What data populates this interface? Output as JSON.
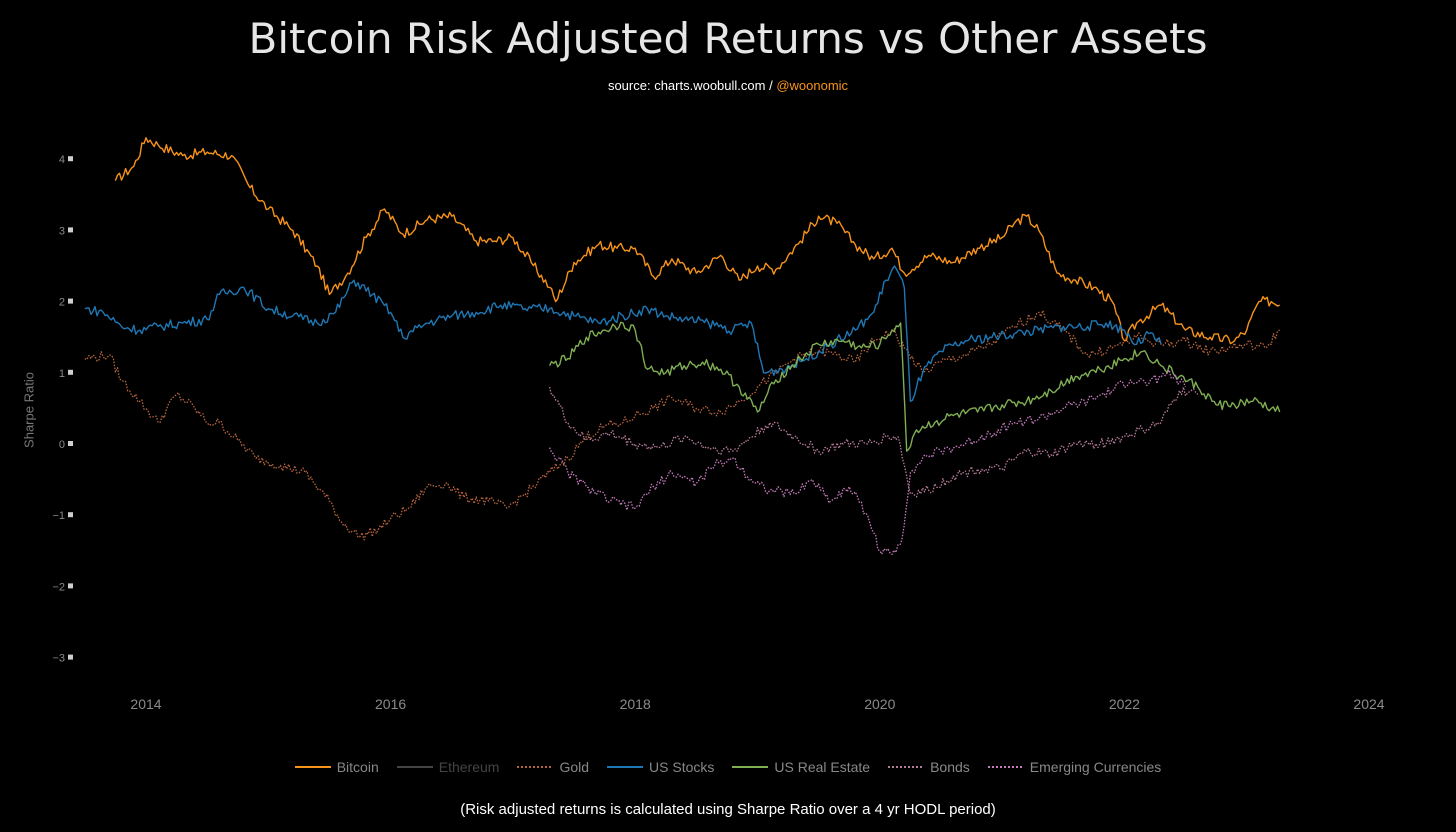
{
  "chart_data": {
    "type": "line",
    "title": "Bitcoin Risk Adjusted Returns vs Other Assets",
    "subtitle_source": "source: charts.woobull.com /",
    "subtitle_handle": "@woonomic",
    "ylabel": "Sharpe Ratio",
    "xlabel": "",
    "footnote": "(Risk adjusted returns is calculated using Sharpe Ratio over a 4 yr HODL period)",
    "ylim": [
      -3,
      4.5
    ],
    "xlim": [
      2013.5,
      2024.2
    ],
    "yticks": [
      4,
      3,
      2,
      1,
      0,
      -1,
      -2,
      -3
    ],
    "ytick_labels": [
      "4",
      "3",
      "2",
      "1",
      "0",
      "−1",
      "−2",
      "−3"
    ],
    "xticks": [
      2014,
      2016,
      2018,
      2020,
      2022,
      2024
    ],
    "xtick_labels": [
      "2014",
      "2016",
      "2018",
      "2020",
      "2022",
      "2024"
    ],
    "legend_position": "bottom",
    "series": [
      {
        "name": "Bitcoin",
        "color": "#f7931a",
        "dash": "solid",
        "muted": false,
        "x": [
          2013.75,
          2013.9,
          2014.0,
          2014.1,
          2014.3,
          2014.5,
          2014.7,
          2014.85,
          2015.0,
          2015.2,
          2015.4,
          2015.5,
          2015.65,
          2015.8,
          2015.95,
          2016.1,
          2016.3,
          2016.5,
          2016.7,
          2016.85,
          2017.0,
          2017.15,
          2017.3,
          2017.35,
          2017.5,
          2017.7,
          2017.85,
          2018.0,
          2018.15,
          2018.3,
          2018.5,
          2018.7,
          2018.85,
          2019.0,
          2019.15,
          2019.35,
          2019.5,
          2019.65,
          2019.8,
          2019.95,
          2020.1,
          2020.2,
          2020.4,
          2020.6,
          2020.8,
          2021.0,
          2021.1,
          2021.2,
          2021.3,
          2021.45,
          2021.6,
          2021.75,
          2021.9,
          2022.0,
          2022.1,
          2022.3,
          2022.5,
          2022.7,
          2022.9,
          2023.0,
          2023.1,
          2023.2,
          2023.27
        ],
        "y": [
          3.7,
          3.9,
          4.3,
          4.2,
          4.05,
          4.1,
          4.05,
          3.6,
          3.3,
          3.0,
          2.5,
          2.1,
          2.4,
          2.9,
          3.3,
          2.95,
          3.15,
          3.2,
          2.85,
          2.85,
          2.9,
          2.55,
          2.2,
          2.0,
          2.55,
          2.8,
          2.75,
          2.75,
          2.35,
          2.6,
          2.4,
          2.65,
          2.3,
          2.5,
          2.45,
          2.85,
          3.2,
          3.1,
          2.8,
          2.6,
          2.75,
          2.4,
          2.65,
          2.55,
          2.75,
          2.9,
          3.1,
          3.2,
          3.0,
          2.4,
          2.3,
          2.2,
          2.0,
          1.45,
          1.7,
          1.95,
          1.6,
          1.5,
          1.45,
          1.6,
          2.0,
          2.0,
          1.95
        ]
      },
      {
        "name": "Ethereum",
        "color": "#444444",
        "dash": "solid",
        "muted": true,
        "x": [],
        "y": []
      },
      {
        "name": "Gold",
        "color": "#b8653e",
        "dash": "dotted",
        "muted": false,
        "x": [
          2013.5,
          2013.7,
          2013.8,
          2013.95,
          2014.1,
          2014.25,
          2014.4,
          2014.5,
          2014.6,
          2014.75,
          2014.9,
          2015.1,
          2015.3,
          2015.5,
          2015.6,
          2015.75,
          2015.9,
          2016.0,
          2016.15,
          2016.3,
          2016.45,
          2016.6,
          2016.8,
          2016.95,
          2017.1,
          2017.3,
          2017.45,
          2017.6,
          2017.75,
          2017.9,
          2018.0,
          2018.15,
          2018.3,
          2018.5,
          2018.7,
          2018.85,
          2019.0,
          2019.15,
          2019.3,
          2019.5,
          2019.65,
          2019.8,
          2019.95,
          2020.1,
          2020.2,
          2020.35,
          2020.5,
          2020.7,
          2020.9,
          2021.1,
          2021.3,
          2021.5,
          2021.7,
          2021.9,
          2022.1,
          2022.3,
          2022.5,
          2022.7,
          2022.85,
          2023.0,
          2023.15,
          2023.27
        ],
        "y": [
          1.2,
          1.25,
          0.9,
          0.6,
          0.3,
          0.7,
          0.5,
          0.3,
          0.3,
          0.05,
          -0.2,
          -0.3,
          -0.4,
          -0.8,
          -1.1,
          -1.3,
          -1.2,
          -1.05,
          -0.9,
          -0.6,
          -0.55,
          -0.75,
          -0.8,
          -0.9,
          -0.7,
          -0.4,
          -0.2,
          0.1,
          0.25,
          0.3,
          0.4,
          0.5,
          0.65,
          0.5,
          0.45,
          0.6,
          0.8,
          1.0,
          1.2,
          1.3,
          1.25,
          1.15,
          1.45,
          1.6,
          1.35,
          1.0,
          1.15,
          1.25,
          1.4,
          1.65,
          1.85,
          1.6,
          1.25,
          1.35,
          1.5,
          1.4,
          1.45,
          1.3,
          1.35,
          1.4,
          1.35,
          1.6
        ]
      },
      {
        "name": "US Stocks",
        "color": "#1f77b4",
        "dash": "solid",
        "muted": false,
        "x": [
          2013.5,
          2013.65,
          2013.8,
          2013.95,
          2014.1,
          2014.3,
          2014.5,
          2014.6,
          2014.8,
          2015.0,
          2015.2,
          2015.4,
          2015.55,
          2015.7,
          2015.85,
          2016.0,
          2016.1,
          2016.3,
          2016.5,
          2016.7,
          2016.9,
          2017.1,
          2017.3,
          2017.5,
          2017.7,
          2017.9,
          2018.1,
          2018.25,
          2018.4,
          2018.6,
          2018.8,
          2018.95,
          2019.05,
          2019.2,
          2019.4,
          2019.6,
          2019.8,
          2019.95,
          2020.05,
          2020.12,
          2020.2,
          2020.25,
          2020.35,
          2020.5,
          2020.7,
          2020.9,
          2021.1,
          2021.3,
          2021.5,
          2021.7,
          2021.85,
          2022.0,
          2022.1,
          2022.2,
          2022.3
        ],
        "y": [
          1.9,
          1.85,
          1.65,
          1.6,
          1.65,
          1.7,
          1.75,
          2.1,
          2.2,
          1.9,
          1.8,
          1.7,
          1.85,
          2.3,
          2.1,
          1.85,
          1.5,
          1.7,
          1.8,
          1.85,
          1.95,
          1.9,
          1.9,
          1.8,
          1.7,
          1.8,
          1.9,
          1.8,
          1.75,
          1.7,
          1.6,
          1.7,
          1.0,
          1.05,
          1.2,
          1.4,
          1.6,
          1.85,
          2.3,
          2.5,
          2.2,
          0.6,
          1.0,
          1.3,
          1.45,
          1.5,
          1.55,
          1.6,
          1.65,
          1.65,
          1.7,
          1.6,
          1.4,
          1.55,
          1.4
        ]
      },
      {
        "name": "US Real Estate",
        "color": "#7fae53",
        "dash": "solid",
        "muted": false,
        "x": [
          2017.3,
          2017.45,
          2017.6,
          2017.75,
          2017.9,
          2018.0,
          2018.1,
          2018.25,
          2018.4,
          2018.55,
          2018.7,
          2018.85,
          2019.0,
          2019.15,
          2019.35,
          2019.5,
          2019.7,
          2019.85,
          2020.0,
          2020.1,
          2020.17,
          2020.22,
          2020.3,
          2020.45,
          2020.6,
          2020.8,
          2021.0,
          2021.2,
          2021.4,
          2021.6,
          2021.8,
          2022.0,
          2022.15,
          2022.3,
          2022.45,
          2022.6,
          2022.75,
          2022.9,
          2023.05,
          2023.2,
          2023.27
        ],
        "y": [
          1.1,
          1.2,
          1.5,
          1.6,
          1.7,
          1.6,
          1.05,
          1.0,
          1.1,
          1.15,
          1.05,
          0.8,
          0.45,
          0.9,
          1.2,
          1.4,
          1.45,
          1.35,
          1.4,
          1.6,
          1.7,
          -0.1,
          0.2,
          0.3,
          0.4,
          0.45,
          0.55,
          0.6,
          0.75,
          0.95,
          1.05,
          1.2,
          1.3,
          1.1,
          0.95,
          0.8,
          0.55,
          0.55,
          0.6,
          0.5,
          0.45
        ]
      },
      {
        "name": "Bonds",
        "color": "#b77b9a",
        "dash": "dotted",
        "muted": false,
        "x": [
          2017.3,
          2017.45,
          2017.6,
          2017.8,
          2018.0,
          2018.2,
          2018.4,
          2018.6,
          2018.8,
          2018.95,
          2019.1,
          2019.3,
          2019.5,
          2019.7,
          2019.9,
          2020.05,
          2020.15,
          2020.25,
          2020.4,
          2020.6,
          2020.8,
          2021.0,
          2021.2,
          2021.4,
          2021.6,
          2021.8,
          2022.0,
          2022.15,
          2022.3,
          2022.45,
          2022.6
        ],
        "y": [
          0.8,
          0.3,
          0.05,
          0.15,
          0.0,
          -0.05,
          0.1,
          -0.05,
          -0.1,
          0.1,
          0.3,
          0.1,
          -0.1,
          0.0,
          0.0,
          0.1,
          0.1,
          -0.7,
          -0.65,
          -0.45,
          -0.35,
          -0.35,
          -0.1,
          -0.15,
          0.0,
          0.0,
          0.1,
          0.2,
          0.3,
          0.75,
          0.7
        ]
      },
      {
        "name": "Emerging Currencies",
        "color": "#c77cbf",
        "dash": "dotted",
        "muted": false,
        "x": [
          2017.3,
          2017.45,
          2017.6,
          2017.8,
          2018.0,
          2018.15,
          2018.3,
          2018.5,
          2018.65,
          2018.8,
          2018.95,
          2019.1,
          2019.3,
          2019.45,
          2019.6,
          2019.75,
          2019.9,
          2020.0,
          2020.1,
          2020.18,
          2020.25,
          2020.35,
          2020.5,
          2020.7,
          2020.9,
          2021.1,
          2021.3,
          2021.5,
          2021.7,
          2021.9,
          2022.05,
          2022.2,
          2022.35,
          2022.5
        ],
        "y": [
          -0.05,
          -0.4,
          -0.6,
          -0.8,
          -0.9,
          -0.6,
          -0.4,
          -0.55,
          -0.3,
          -0.2,
          -0.5,
          -0.65,
          -0.7,
          -0.5,
          -0.8,
          -0.6,
          -1.0,
          -1.5,
          -1.55,
          -1.35,
          -0.4,
          -0.2,
          -0.1,
          0.0,
          0.15,
          0.3,
          0.35,
          0.5,
          0.6,
          0.75,
          0.9,
          0.85,
          1.0,
          0.8
        ]
      }
    ]
  }
}
